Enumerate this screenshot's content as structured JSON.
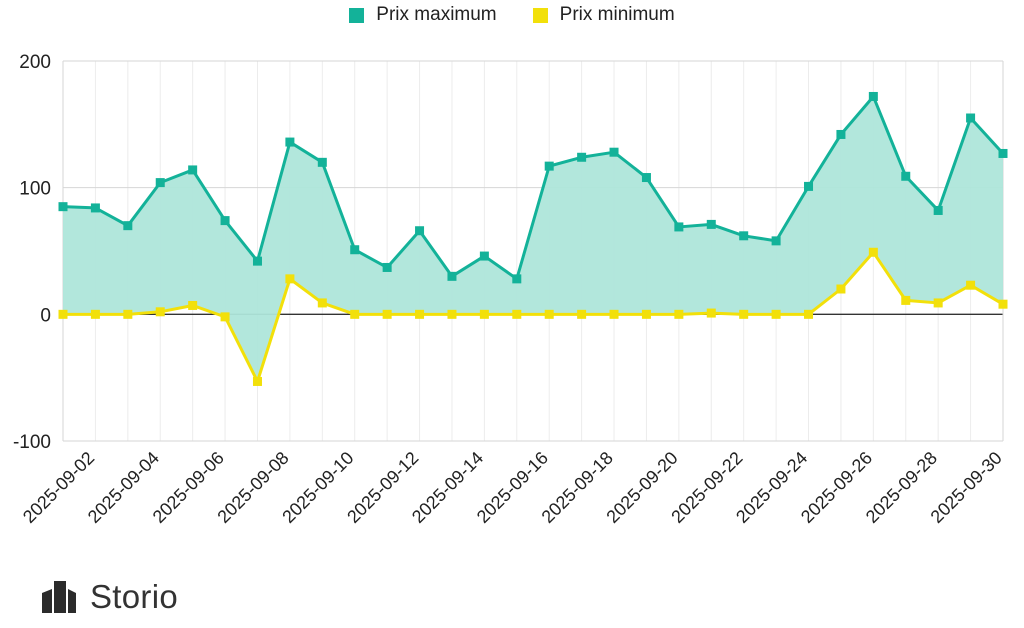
{
  "colors": {
    "max": "#13b299",
    "maxFill": "#aee6da",
    "min": "#f2e00a",
    "grid": "#d6d6d6",
    "text": "#222222"
  },
  "legend": {
    "max_label": "Prix maximum",
    "min_label": "Prix minimum"
  },
  "brand": {
    "name": "Storio"
  },
  "chart_data": {
    "type": "area",
    "title": "",
    "xlabel": "",
    "ylabel": "",
    "ylim": [
      -100,
      200
    ],
    "yticks": [
      -100,
      0,
      100,
      200
    ],
    "grid": true,
    "legend_position": "top-center",
    "x": [
      "2025-09-01",
      "2025-09-02",
      "2025-09-03",
      "2025-09-04",
      "2025-09-05",
      "2025-09-06",
      "2025-09-07",
      "2025-09-08",
      "2025-09-09",
      "2025-09-10",
      "2025-09-11",
      "2025-09-12",
      "2025-09-13",
      "2025-09-14",
      "2025-09-15",
      "2025-09-16",
      "2025-09-17",
      "2025-09-18",
      "2025-09-19",
      "2025-09-20",
      "2025-09-21",
      "2025-09-22",
      "2025-09-23",
      "2025-09-24",
      "2025-09-25",
      "2025-09-26",
      "2025-09-27",
      "2025-09-28",
      "2025-09-29",
      "2025-09-30"
    ],
    "x_tick_labels": [
      "2025-09-02",
      "2025-09-04",
      "2025-09-06",
      "2025-09-08",
      "2025-09-10",
      "2025-09-12",
      "2025-09-14",
      "2025-09-16",
      "2025-09-18",
      "2025-09-20",
      "2025-09-22",
      "2025-09-24",
      "2025-09-26",
      "2025-09-28",
      "2025-09-30"
    ],
    "series": [
      {
        "name": "Prix maximum",
        "color": "#13b299",
        "values": [
          85,
          84,
          70,
          104,
          114,
          74,
          42,
          136,
          120,
          51,
          37,
          66,
          30,
          46,
          28,
          117,
          124,
          128,
          108,
          69,
          71,
          62,
          58,
          101,
          142,
          172,
          109,
          82,
          155,
          127
        ]
      },
      {
        "name": "Prix minimum",
        "color": "#f2e00a",
        "values": [
          0,
          0,
          0,
          2,
          7,
          -2,
          -53,
          28,
          9,
          0,
          0,
          0,
          0,
          0,
          0,
          0,
          0,
          0,
          0,
          0,
          1,
          0,
          0,
          0,
          20,
          49,
          11,
          9,
          23,
          8
        ]
      }
    ]
  }
}
